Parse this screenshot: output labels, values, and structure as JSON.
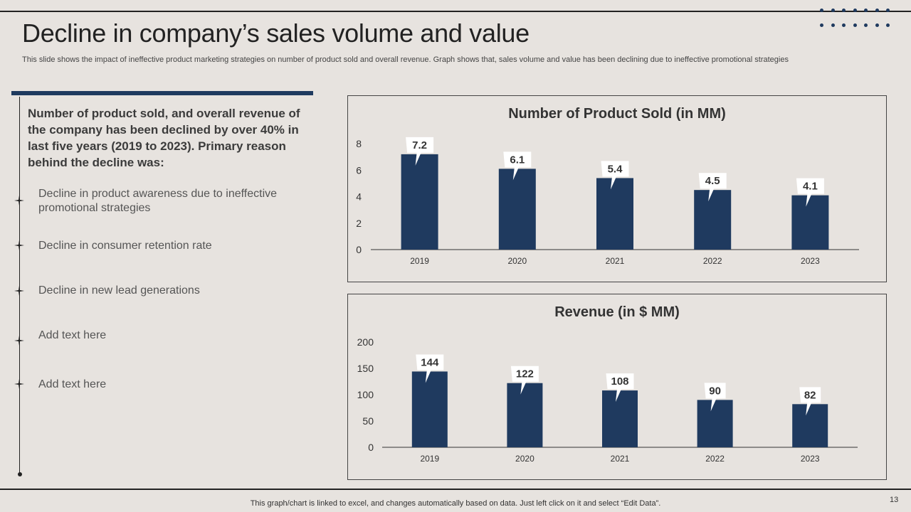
{
  "slide": {
    "title": "Decline in company’s sales volume and value",
    "subtitle": "This slide shows the impact of ineffective product marketing strategies on number of product sold and overall revenue. Graph shows that, sales volume and value has been declining due to ineffective promotional strategies",
    "accent_color": "#1f3a5f",
    "footer": "This graph/chart is linked to excel, and changes automatically based on data. Just left click on it and select “Edit Data”.",
    "page_number": "13"
  },
  "left_panel": {
    "intro": "Number of product sold, and overall revenue of the company has been declined by over 40% in last five years (2019 to 2023). Primary reason behind the decline was:",
    "bullets": [
      "Decline in product awareness due to ineffective promotional strategies",
      "Decline in consumer retention rate",
      "Decline in new lead generations",
      "Add text here",
      "Add text here"
    ]
  },
  "chart_data": [
    {
      "type": "bar",
      "title": "Number of Product Sold (in MM)",
      "categories": [
        "2019",
        "2020",
        "2021",
        "2022",
        "2023"
      ],
      "values": [
        7.2,
        6.1,
        5.4,
        4.5,
        4.1
      ],
      "value_labels": [
        "7.2",
        "6.1",
        "5.4",
        "4.5",
        "4.1"
      ],
      "ylim": [
        0,
        8
      ],
      "yticks": [
        "0",
        "2",
        "4",
        "6",
        "8"
      ],
      "xlabel": "",
      "ylabel": "",
      "bar_color": "#1f3a5f",
      "grid": false
    },
    {
      "type": "bar",
      "title": "Revenue  (in $ MM)",
      "categories": [
        "2019",
        "2020",
        "2021",
        "2022",
        "2023"
      ],
      "values": [
        144,
        122,
        108,
        90,
        82
      ],
      "value_labels": [
        "144",
        "122",
        "108",
        "90",
        "82"
      ],
      "ylim": [
        0,
        200
      ],
      "yticks": [
        "0",
        "50",
        "100",
        "150",
        "200"
      ],
      "xlabel": "",
      "ylabel": "",
      "bar_color": "#1f3a5f",
      "grid": false
    }
  ]
}
